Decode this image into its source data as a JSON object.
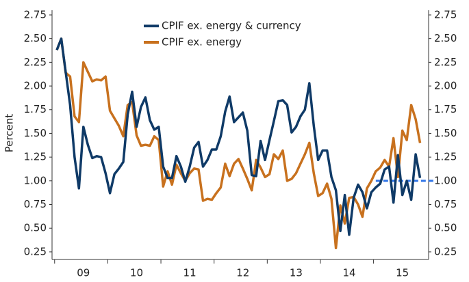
{
  "chart_data": {
    "type": "line",
    "y_label": "Percent",
    "categories": [
      null,
      null,
      null,
      null,
      null,
      null,
      "09",
      null,
      null,
      null,
      null,
      null,
      null,
      null,
      null,
      null,
      null,
      null,
      "10",
      null,
      null,
      null,
      null,
      null,
      null,
      null,
      null,
      null,
      null,
      null,
      "11",
      null,
      null,
      null,
      null,
      null,
      null,
      null,
      null,
      null,
      null,
      null,
      "12",
      null,
      null,
      null,
      null,
      null,
      null,
      null,
      null,
      null,
      null,
      null,
      "13",
      null,
      null,
      null,
      null,
      null,
      null,
      null,
      null,
      null,
      null,
      null,
      "14",
      null,
      null,
      null,
      null,
      null,
      null,
      null,
      null,
      null,
      null,
      null,
      "15",
      null,
      null,
      null,
      null
    ],
    "series": [
      {
        "name": "CPIF ex. energy & currency",
        "color": "#0f3a67",
        "values": [
          2.38,
          2.5,
          2.15,
          1.8,
          1.25,
          0.92,
          1.57,
          1.38,
          1.24,
          1.26,
          1.25,
          1.08,
          0.87,
          1.07,
          1.13,
          1.2,
          1.7,
          1.94,
          1.57,
          1.78,
          1.88,
          1.64,
          1.54,
          1.57,
          1.15,
          1.03,
          1.03,
          1.26,
          1.15,
          0.99,
          1.15,
          1.35,
          1.41,
          1.15,
          1.22,
          1.33,
          1.33,
          1.47,
          1.73,
          1.89,
          1.62,
          1.67,
          1.72,
          1.53,
          1.06,
          1.05,
          1.42,
          1.22,
          1.43,
          1.63,
          1.84,
          1.85,
          1.8,
          1.51,
          1.57,
          1.68,
          1.75,
          2.03,
          1.58,
          1.22,
          1.32,
          1.32,
          1.04,
          0.9,
          0.47,
          0.85,
          0.43,
          0.82,
          0.96,
          0.88,
          0.71,
          0.88,
          0.93,
          0.97,
          1.12,
          1.15,
          0.77,
          1.27,
          0.85,
          1.0,
          0.8,
          1.28,
          1.03
        ]
      },
      {
        "name": "CPIF ex. energy",
        "color": "#c8711e",
        "values": [
          2.38,
          2.5,
          2.14,
          2.1,
          1.68,
          1.62,
          2.25,
          2.15,
          2.05,
          2.07,
          2.06,
          2.1,
          1.74,
          1.66,
          1.58,
          1.47,
          1.8,
          1.83,
          1.48,
          1.37,
          1.38,
          1.37,
          1.47,
          1.43,
          0.94,
          1.1,
          0.96,
          1.17,
          1.08,
          1.0,
          1.08,
          1.13,
          1.12,
          0.79,
          0.81,
          0.8,
          0.87,
          0.93,
          1.18,
          1.05,
          1.18,
          1.23,
          1.13,
          1.02,
          0.9,
          1.22,
          1.14,
          1.04,
          1.07,
          1.28,
          1.23,
          1.32,
          1.0,
          1.02,
          1.08,
          1.18,
          1.28,
          1.4,
          1.08,
          0.84,
          0.87,
          0.97,
          0.81,
          0.29,
          0.74,
          0.55,
          0.82,
          0.83,
          0.75,
          0.62,
          0.92,
          1.0,
          1.1,
          1.14,
          1.22,
          1.15,
          1.45,
          1.04,
          1.53,
          1.43,
          1.8,
          1.65,
          1.4
        ]
      }
    ],
    "hline": {
      "value": 1,
      "color": "#2f74e8"
    },
    "ylim": [
      0.17,
      2.8
    ],
    "yticks": [
      0.25,
      {
        "value": 0.5,
        "label": "0.50"
      },
      0.75,
      {
        "value": 1,
        "label": "1.00"
      },
      1.25,
      {
        "value": 1.5,
        "label": "1.50"
      },
      1.75,
      {
        "value": 2,
        "label": "2.00"
      },
      2.25,
      {
        "value": 2.5,
        "label": "2.50"
      },
      2.75
    ],
    "y2lim": [
      0.17,
      2.8
    ],
    "y2ticks": [
      0.25,
      {
        "value": 0.5,
        "label": "0.50"
      },
      0.75,
      {
        "value": 1,
        "label": "1.00"
      },
      1.25,
      {
        "value": 1.5,
        "label": "1.50"
      },
      1.75,
      {
        "value": 2,
        "label": "2.00"
      },
      2.25,
      {
        "value": 2.5,
        "label": "2.50"
      },
      2.75
    ],
    "grid": false,
    "legend": "top"
  }
}
